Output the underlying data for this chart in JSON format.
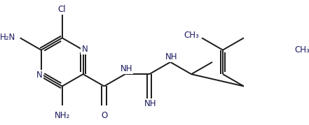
{
  "background": "#ffffff",
  "line_color": "#3a3a3a",
  "bond_color": "#1a1a1a",
  "text_color": "#1a1a60",
  "N_color": "#1a1a60",
  "line_width": 1.4,
  "font_size": 8.5,
  "figsize": [
    4.41,
    1.79
  ],
  "dpi": 100,
  "xlim": [
    -0.5,
    9.5
  ],
  "ylim": [
    -1.8,
    2.2
  ]
}
